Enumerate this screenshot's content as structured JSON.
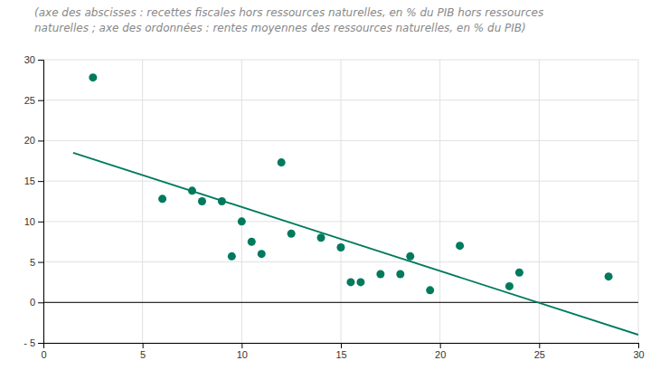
{
  "chart_data": {
    "type": "scatter",
    "subtitle": [
      "(axe des abscisses : recettes fiscales hors ressources naturelles, en % du PIB hors ressources",
      "naturelles ; axe des ordonnées : rentes moyennes des ressources naturelles, en % du PIB)"
    ],
    "series": [
      {
        "type": "scatter",
        "color": "#007A5E",
        "x": [
          2.5,
          6.0,
          7.5,
          8.0,
          9.0,
          9.5,
          10.0,
          10.5,
          11.0,
          12.0,
          12.5,
          14.0,
          15.0,
          15.5,
          16.0,
          17.0,
          18.0,
          18.5,
          19.5,
          21.0,
          23.5,
          24.0,
          28.5
        ],
        "values": [
          27.8,
          12.8,
          13.8,
          12.5,
          12.5,
          5.7,
          10.0,
          7.5,
          6.0,
          17.3,
          8.5,
          8.0,
          6.8,
          2.5,
          2.5,
          3.5,
          3.5,
          5.7,
          1.5,
          7.0,
          2.0,
          3.7,
          3.2
        ]
      },
      {
        "type": "line",
        "color": "#007A5E",
        "x": [
          1.5,
          30.0
        ],
        "values": [
          18.5,
          -4.0
        ]
      }
    ],
    "hline": 0,
    "xlim": [
      0,
      30
    ],
    "ylim": [
      -5,
      30
    ],
    "xticks": [
      0,
      5,
      10,
      15,
      20,
      25,
      30
    ],
    "yticks": [
      {
        "value": -5,
        "label": "- 5"
      },
      0,
      5,
      10,
      15,
      20,
      25,
      30
    ],
    "grid": true
  }
}
